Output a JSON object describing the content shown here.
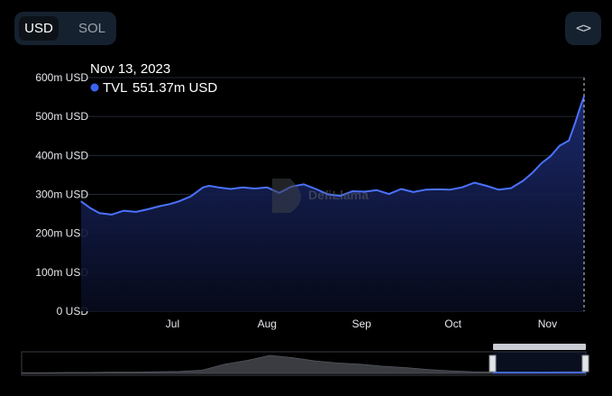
{
  "currency_toggle": {
    "usd_label": "USD",
    "sol_label": "SOL",
    "selected": "USD"
  },
  "embed_button": {
    "icon": "code-brackets-icon",
    "label": "<>"
  },
  "watermark": {
    "text": "DefiLlama",
    "icon": "llama-logo"
  },
  "tooltip": {
    "date": "Nov 13, 2023",
    "series": "TVL",
    "value": "551.37m USD",
    "marker_color": "#3b63f0"
  },
  "colors": {
    "line": "#4a72ff",
    "fill_top": "#1d2b73",
    "fill_bottom": "#070b1c",
    "grid": "#232834",
    "navigator_fill": "#3a3c42"
  },
  "chart_data": {
    "type": "area",
    "series": [
      {
        "name": "TVL",
        "x": [
          "2023-06-01",
          "2023-06-04",
          "2023-06-07",
          "2023-06-11",
          "2023-06-15",
          "2023-06-19",
          "2023-06-23",
          "2023-06-27",
          "2023-06-30",
          "2023-07-03",
          "2023-07-07",
          "2023-07-11",
          "2023-07-13",
          "2023-07-16",
          "2023-07-20",
          "2023-07-24",
          "2023-07-28",
          "2023-08-01",
          "2023-08-05",
          "2023-08-09",
          "2023-08-13",
          "2023-08-17",
          "2023-08-21",
          "2023-08-25",
          "2023-08-29",
          "2023-09-02",
          "2023-09-06",
          "2023-09-10",
          "2023-09-14",
          "2023-09-18",
          "2023-09-22",
          "2023-09-26",
          "2023-09-30",
          "2023-10-04",
          "2023-10-08",
          "2023-10-12",
          "2023-10-16",
          "2023-10-20",
          "2023-10-24",
          "2023-10-27",
          "2023-10-30",
          "2023-11-02",
          "2023-11-05",
          "2023-11-08",
          "2023-11-10",
          "2023-11-12",
          "2023-11-13"
        ],
        "values": [
          282,
          265,
          252,
          248,
          258,
          255,
          262,
          270,
          275,
          282,
          295,
          318,
          322,
          318,
          314,
          318,
          315,
          318,
          304,
          320,
          326,
          314,
          300,
          296,
          308,
          307,
          311,
          301,
          314,
          306,
          312,
          313,
          312,
          318,
          330,
          322,
          312,
          316,
          335,
          355,
          380,
          398,
          425,
          438,
          482,
          530,
          551.37
        ]
      }
    ],
    "y_ticks": [
      "0 USD",
      "100m USD",
      "200m USD",
      "300m USD",
      "400m USD",
      "500m USD",
      "600m USD"
    ],
    "x_ticks": [
      "Jul",
      "Aug",
      "Sep",
      "Oct",
      "Nov"
    ],
    "x_tick_dates": [
      "2023-07-01",
      "2023-08-01",
      "2023-09-01",
      "2023-10-01",
      "2023-11-01"
    ],
    "ylim": [
      0,
      600
    ],
    "xlim": [
      "2023-06-01",
      "2023-11-13"
    ],
    "grid": true,
    "navigator": {
      "values": [
        2,
        2,
        3,
        3,
        4,
        4,
        5,
        6,
        10,
        28,
        40,
        55,
        48,
        38,
        32,
        28,
        22,
        18,
        12,
        8,
        5,
        4,
        4,
        4,
        5,
        5
      ],
      "selected_range": "right-end"
    }
  }
}
